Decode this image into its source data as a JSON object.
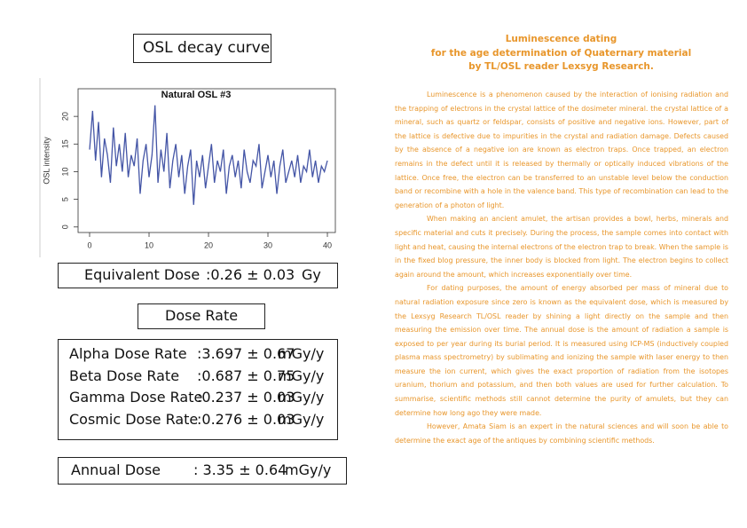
{
  "chart_data": {
    "type": "line",
    "title": "Natural OSL #3",
    "ylabel": "OSL intensity",
    "x": [
      0,
      0.5,
      1,
      1.5,
      2,
      2.5,
      3,
      3.5,
      4,
      4.5,
      5,
      5.5,
      6,
      6.5,
      7,
      7.5,
      8,
      8.5,
      9,
      9.5,
      10,
      10.5,
      11,
      11.5,
      12,
      12.5,
      13,
      13.5,
      14,
      14.5,
      15,
      15.5,
      16,
      16.5,
      17,
      17.5,
      18,
      18.5,
      19,
      19.5,
      20,
      20.5,
      21,
      21.5,
      22,
      22.5,
      23,
      23.5,
      24,
      24.5,
      25,
      25.5,
      26,
      26.5,
      27,
      27.5,
      28,
      28.5,
      29,
      29.5,
      30,
      30.5,
      31,
      31.5,
      32,
      32.5,
      33,
      33.5,
      34,
      34.5,
      35,
      35.5,
      36,
      36.5,
      37,
      37.5,
      38,
      38.5,
      39,
      39.5,
      40
    ],
    "values": [
      14,
      21,
      12,
      19,
      9,
      16,
      13,
      8,
      18,
      11,
      15,
      10,
      17,
      9,
      13,
      11,
      16,
      6,
      12,
      15,
      9,
      13,
      22,
      8,
      14,
      10,
      17,
      7,
      12,
      15,
      9,
      13,
      6,
      11,
      14,
      4,
      12,
      9,
      13,
      7,
      11,
      15,
      8,
      12,
      10,
      14,
      6,
      11,
      13,
      9,
      12,
      7,
      14,
      10,
      8,
      12,
      11,
      15,
      7,
      10,
      13,
      9,
      12,
      6,
      11,
      14,
      8,
      10,
      12,
      9,
      13,
      8,
      11,
      10,
      14,
      9,
      12,
      8,
      11,
      10,
      12
    ],
    "color": "#4455a6",
    "xlim": [
      -1.94,
      41.34
    ],
    "xticks": [
      0,
      10,
      20,
      30,
      40
    ],
    "ylim": [
      -1,
      25
    ],
    "yticks": [
      0,
      5,
      10,
      15,
      20
    ]
  },
  "left": {
    "osl_title": "OSL decay curve",
    "equivalent_dose": {
      "label": "Equivalent Dose",
      "value": ":0.26 ± 0.03",
      "unit": "Gy"
    },
    "dose_rate_title": "Dose Rate",
    "dose_rates": [
      {
        "label": "Alpha Dose Rate",
        "value": ":3.697 ± 0.67",
        "unit": "mGy/y"
      },
      {
        "label": "Beta Dose Rate",
        "value": ":0.687 ± 0.75",
        "unit": "mGy/y"
      },
      {
        "label": "Gamma Dose Rate",
        "value": ":0.237 ± 0.03",
        "unit": "mGy/y"
      },
      {
        "label": "Cosmic Dose Rate",
        "value": ":0.276 ± 0.03",
        "unit": "mGy/y"
      }
    ],
    "annual_dose": {
      "label": "Annual Dose",
      "value": ": 3.35 ± 0.64",
      "unit": "mGy/y"
    }
  },
  "article": {
    "title": [
      "Luminescence dating",
      "for the age determination of Quaternary material",
      "by TL/OSL reader Lexsyg Research."
    ],
    "paragraphs": [
      "Luminescence is a phenomenon caused by the interaction of ionising radiation and the trapping of electrons in the crystal lattice of the dosimeter mineral. the crystal lattice of a mineral, such as quartz or feldspar, consists of positive and negative ions. However, part of the lattice is defective due to impurities in the crystal and radiation damage. Defects caused by the absence of a negative ion are known as electron traps. Once trapped, an electron remains in the defect until it is released by thermally or optically induced vibrations of the lattice. Once free, the electron can be transferred to an unstable level below the conduction band or recombine with a hole in the valence band. This type of recombination can lead to the generation of a photon of light.",
      "When making an ancient amulet, the artisan provides a bowl, herbs, minerals and specific material and cuts it precisely. During the process, the sample comes into contact with light and heat, causing the internal electrons of the electron trap to break. When the sample is in the fixed blog pressure, the inner body is blocked from light. The electron begins to collect again around the amount, which increases exponentially over time.",
      "For dating purposes, the amount of energy absorbed per mass of mineral due to natural radiation exposure since zero is known as the equivalent dose, which is measured by the Lexsyg Research TL/OSL reader by shining a light directly on the sample and then measuring the emission over time. The annual dose is the amount of radiation a sample is exposed to per year during its burial period. It is measured using ICP-MS (inductively coupled plasma mass spectrometry) by sublimating and ionizing the sample with laser energy to then measure the ion current, which gives the exact proportion of radiation from the isotopes uranium, thorium and potassium, and then both values are used for further calculation. To summarise, scientific methods still cannot determine the purity of amulets, but they can determine how long ago they were made.",
      "However, Amata Siam is an expert in the natural sciences and will soon be able to determine the exact age of the antiques by combining scientific methods."
    ]
  }
}
